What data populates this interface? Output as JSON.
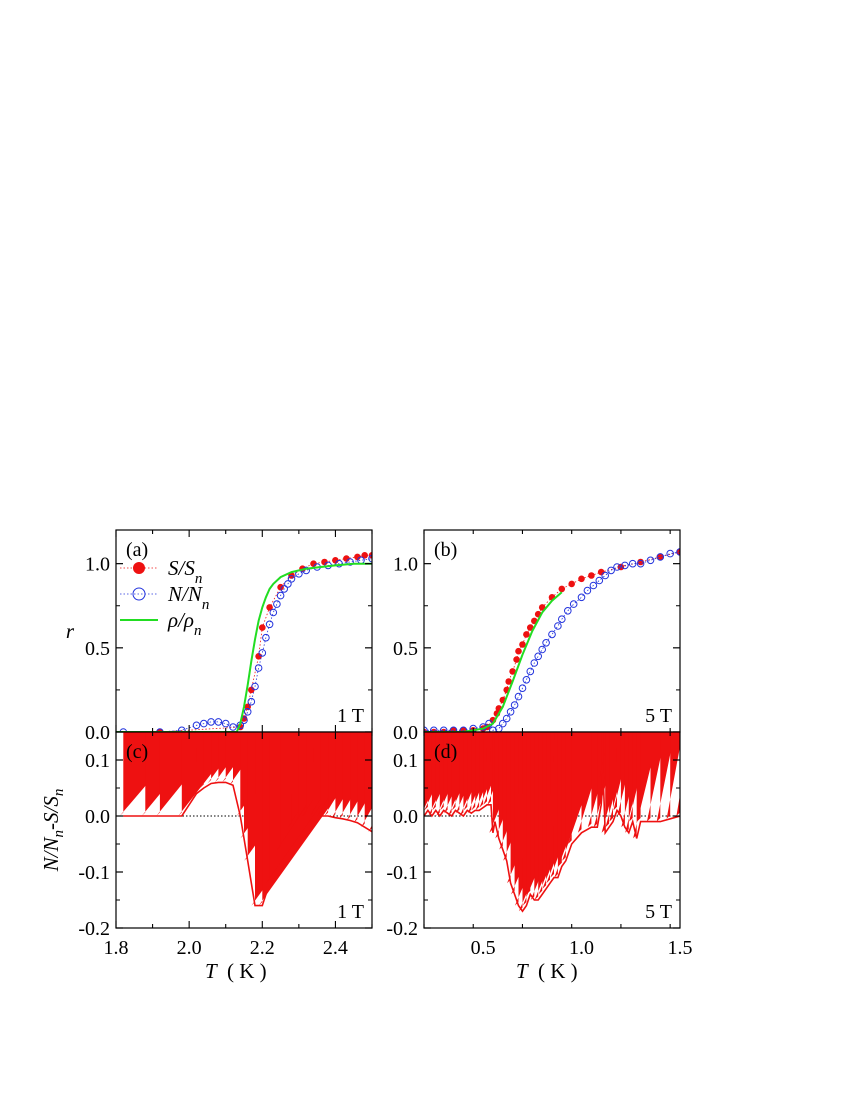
{
  "colors": {
    "red": "#ee1111",
    "blue": "#2233dd",
    "green": "#22dd22",
    "axis": "#000000"
  },
  "legend": [
    {
      "series": "S",
      "sym": "S/S",
      "sub": "n"
    },
    {
      "series": "N",
      "sym": "N/N",
      "sub": "n"
    },
    {
      "series": "rho",
      "sym": "ρ/ρ",
      "sub": "n"
    }
  ],
  "labels": {
    "r_axis": "r",
    "diff_axis": "N/N",
    "diff_axis_sub": "n",
    "diff_axis_tail": "-S/S",
    "diff_axis_tail_sub": "n",
    "x_sym": "T",
    "x_unit": "( K )"
  },
  "chart_data": [
    {
      "id": "a",
      "panel_label": "(a)",
      "field_label": "1 T",
      "type": "line",
      "xlim": [
        1.8,
        2.5
      ],
      "ylim": [
        0,
        1.2
      ],
      "yticks": [
        "0.0",
        "0.5",
        "1.0"
      ],
      "yticks_values": [
        0,
        0.5,
        1.0
      ],
      "series": [
        {
          "name": "S/S_n",
          "style": "filled-circle-dotted",
          "color": "red",
          "x": [
            1.92,
            2.14,
            2.15,
            2.16,
            2.17,
            2.19,
            2.2,
            2.22,
            2.25,
            2.28,
            2.31,
            2.34,
            2.37,
            2.4,
            2.43,
            2.46,
            2.48,
            2.5
          ],
          "y": [
            0.0,
            0.03,
            0.08,
            0.15,
            0.25,
            0.45,
            0.62,
            0.74,
            0.86,
            0.93,
            0.97,
            1.0,
            1.01,
            1.02,
            1.03,
            1.04,
            1.05,
            1.05
          ]
        },
        {
          "name": "N/N_n",
          "style": "open-circle-dotted",
          "color": "blue",
          "x": [
            1.82,
            1.92,
            1.98,
            2.02,
            2.04,
            2.06,
            2.08,
            2.1,
            2.12,
            2.14,
            2.15,
            2.16,
            2.17,
            2.18,
            2.19,
            2.2,
            2.21,
            2.22,
            2.23,
            2.24,
            2.25,
            2.26,
            2.27,
            2.28,
            2.3,
            2.32,
            2.35,
            2.38,
            2.41,
            2.44,
            2.47,
            2.5
          ],
          "y": [
            0.0,
            0.0,
            0.01,
            0.04,
            0.05,
            0.06,
            0.06,
            0.05,
            0.03,
            0.04,
            0.07,
            0.12,
            0.18,
            0.27,
            0.38,
            0.47,
            0.56,
            0.64,
            0.71,
            0.76,
            0.81,
            0.85,
            0.88,
            0.91,
            0.94,
            0.96,
            0.98,
            0.99,
            1.0,
            1.01,
            1.02,
            1.03
          ]
        },
        {
          "name": "ρ/ρ_n",
          "style": "solid",
          "color": "green",
          "x": [
            1.8,
            2.13,
            2.14,
            2.15,
            2.16,
            2.17,
            2.18,
            2.19,
            2.2,
            2.21,
            2.22,
            2.23,
            2.25,
            2.28,
            2.32,
            2.36,
            2.4,
            2.45,
            2.5
          ],
          "y": [
            0.0,
            0.0,
            0.05,
            0.15,
            0.28,
            0.42,
            0.55,
            0.66,
            0.74,
            0.8,
            0.85,
            0.88,
            0.92,
            0.95,
            0.97,
            0.98,
            0.99,
            1.0,
            1.0
          ]
        }
      ]
    },
    {
      "id": "b",
      "panel_label": "(b)",
      "field_label": "5 T",
      "type": "line",
      "xlim": [
        0.2,
        1.5
      ],
      "ylim": [
        0,
        1.2
      ],
      "yticks": [
        "0.0",
        "0.5",
        "1.0"
      ],
      "yticks_values": [
        0,
        0.5,
        1.0
      ],
      "series": [
        {
          "name": "S/S_n",
          "style": "filled-circle-dotted",
          "color": "red",
          "x": [
            0.2,
            0.25,
            0.3,
            0.35,
            0.4,
            0.45,
            0.5,
            0.52,
            0.55,
            0.57,
            0.58,
            0.6,
            0.62,
            0.63,
            0.65,
            0.67,
            0.68,
            0.7,
            0.72,
            0.74,
            0.76,
            0.78,
            0.8,
            0.85,
            0.9,
            0.95,
            1.0,
            1.05,
            1.1,
            1.2,
            1.3,
            1.4,
            1.5
          ],
          "y": [
            0.0,
            0.0,
            0.0,
            0.01,
            0.01,
            0.01,
            0.02,
            0.03,
            0.07,
            0.11,
            0.14,
            0.19,
            0.25,
            0.3,
            0.36,
            0.43,
            0.48,
            0.52,
            0.58,
            0.62,
            0.66,
            0.7,
            0.74,
            0.8,
            0.85,
            0.88,
            0.91,
            0.93,
            0.95,
            0.98,
            1.01,
            1.04,
            1.07
          ]
        },
        {
          "name": "N/N_n",
          "style": "open-circle-dotted",
          "color": "blue",
          "x": [
            0.2,
            0.25,
            0.3,
            0.35,
            0.4,
            0.45,
            0.5,
            0.53,
            0.55,
            0.58,
            0.6,
            0.62,
            0.64,
            0.66,
            0.68,
            0.7,
            0.72,
            0.74,
            0.76,
            0.78,
            0.8,
            0.82,
            0.85,
            0.88,
            0.9,
            0.93,
            0.96,
            1.0,
            1.03,
            1.06,
            1.09,
            1.12,
            1.15,
            1.18,
            1.22,
            1.26,
            1.3,
            1.35,
            1.4,
            1.45,
            1.5
          ],
          "y": [
            0.01,
            0.01,
            0.01,
            0.01,
            0.01,
            0.02,
            0.03,
            0.05,
            0.01,
            0.02,
            0.05,
            0.08,
            0.12,
            0.16,
            0.21,
            0.26,
            0.31,
            0.36,
            0.41,
            0.45,
            0.49,
            0.53,
            0.58,
            0.63,
            0.67,
            0.72,
            0.76,
            0.8,
            0.84,
            0.87,
            0.9,
            0.93,
            0.96,
            0.98,
            0.99,
            1.0,
            1.0,
            1.02,
            1.04,
            1.06,
            1.07
          ]
        },
        {
          "name": "ρ/ρ_n",
          "style": "solid",
          "color": "green",
          "x": [
            0.2,
            0.4,
            0.5,
            0.55,
            0.6,
            0.65,
            0.7,
            0.75,
            0.8,
            0.85,
            0.9
          ],
          "y": [
            0.0,
            0.0,
            0.02,
            0.05,
            0.15,
            0.3,
            0.46,
            0.6,
            0.71,
            0.78,
            0.83
          ]
        }
      ]
    },
    {
      "id": "c",
      "panel_label": "(c)",
      "field_label": "1 T",
      "type": "line",
      "xlim": [
        1.8,
        2.5
      ],
      "ylim": [
        -0.2,
        0.15
      ],
      "xticks": [
        "1.8",
        "2.0",
        "2.2",
        "2.4"
      ],
      "xticks_values": [
        1.8,
        2.0,
        2.2,
        2.4
      ],
      "yticks": [
        "-0.2",
        "-0.1",
        "0.0",
        "0.1"
      ],
      "yticks_values": [
        -0.2,
        -0.1,
        0.0,
        0.1
      ],
      "series": [
        {
          "name": "N/N_n-S/S_n",
          "style": "diamond-line",
          "color": "red",
          "x": [
            1.82,
            1.88,
            1.92,
            1.98,
            2.02,
            2.04,
            2.06,
            2.08,
            2.1,
            2.12,
            2.14,
            2.15,
            2.16,
            2.18,
            2.2,
            2.22,
            2.25,
            2.28,
            2.3,
            2.32,
            2.34,
            2.36,
            2.38,
            2.4,
            2.42,
            2.44,
            2.46,
            2.48,
            2.5
          ],
          "y": [
            0.0,
            0.0,
            0.0,
            0.0,
            0.04,
            0.05,
            0.058,
            0.06,
            0.06,
            0.055,
            0.0,
            -0.04,
            -0.08,
            -0.16,
            -0.16,
            -0.12,
            -0.06,
            -0.02,
            -0.01,
            0.0,
            0.0,
            0.0,
            0.0,
            -0.003,
            -0.005,
            -0.008,
            -0.012,
            -0.02,
            -0.028
          ]
        }
      ]
    },
    {
      "id": "d",
      "panel_label": "(d)",
      "field_label": "5 T",
      "type": "line",
      "xlim": [
        0.2,
        1.5
      ],
      "ylim": [
        -0.2,
        0.15
      ],
      "xticks": [
        "0.5",
        "1.0",
        "1.5"
      ],
      "xticks_values": [
        0.5,
        1.0,
        1.5
      ],
      "yticks": [
        "-0.2",
        "-0.1",
        "0.0",
        "0.1"
      ],
      "yticks_values": [
        -0.2,
        -0.1,
        0.0,
        0.1
      ],
      "series": [
        {
          "name": "N/N_n-S/S_n",
          "style": "diamond-line",
          "color": "red",
          "x": [
            0.2,
            0.22,
            0.24,
            0.26,
            0.28,
            0.3,
            0.32,
            0.34,
            0.36,
            0.38,
            0.4,
            0.42,
            0.44,
            0.46,
            0.48,
            0.5,
            0.52,
            0.54,
            0.55,
            0.56,
            0.58,
            0.6,
            0.62,
            0.64,
            0.66,
            0.68,
            0.7,
            0.72,
            0.74,
            0.76,
            0.78,
            0.8,
            0.82,
            0.84,
            0.86,
            0.88,
            0.9,
            0.92,
            0.95,
            1.0,
            1.05,
            1.08,
            1.1,
            1.11,
            1.12,
            1.14,
            1.16,
            1.18,
            1.2,
            1.22,
            1.24,
            1.26,
            1.28,
            1.3,
            1.35,
            1.4,
            1.45,
            1.5
          ],
          "y": [
            0.0,
            0.01,
            0.0,
            0.01,
            0.0,
            0.01,
            0.005,
            0.0,
            0.01,
            0.005,
            0.0,
            0.01,
            0.005,
            0.01,
            0.01,
            0.015,
            0.02,
            0.02,
            -0.03,
            -0.01,
            -0.04,
            -0.06,
            -0.08,
            -0.12,
            -0.14,
            -0.16,
            -0.17,
            -0.16,
            -0.14,
            -0.15,
            -0.15,
            -0.14,
            -0.13,
            -0.12,
            -0.11,
            -0.11,
            -0.09,
            -0.08,
            -0.05,
            -0.03,
            -0.02,
            -0.02,
            0.02,
            0.07,
            -0.03,
            -0.02,
            -0.01,
            0.01,
            0.0,
            -0.02,
            -0.03,
            -0.01,
            -0.04,
            -0.01,
            -0.01,
            -0.01,
            -0.005,
            0.0
          ]
        }
      ]
    }
  ]
}
